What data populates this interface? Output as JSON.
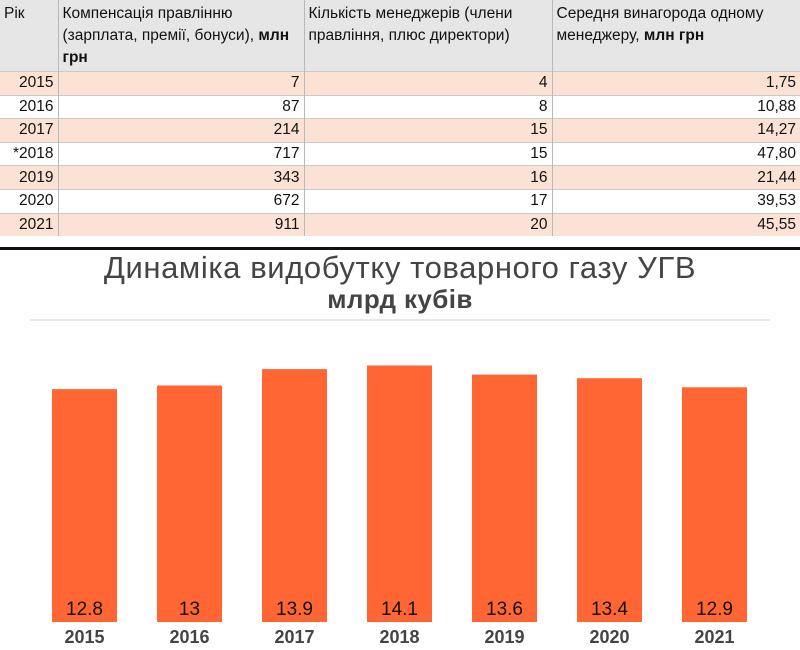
{
  "table": {
    "headers": [
      {
        "text": "Рік",
        "bold": ""
      },
      {
        "text": "Компенсація правлінню (зарплата, премії, бонуси),",
        "bold": "млн грн"
      },
      {
        "text": "Кількість менеджерів (члени правління, плюс директори)",
        "bold": ""
      },
      {
        "text": "Середня винагорода одному менеджеру,",
        "bold": "млн грн"
      }
    ],
    "rows": [
      [
        "2015",
        "7",
        "4",
        "1,75"
      ],
      [
        "2016",
        "87",
        "8",
        "10,88"
      ],
      [
        "2017",
        "214",
        "15",
        "14,27"
      ],
      [
        "*2018",
        "717",
        "15",
        "47,80"
      ],
      [
        "2019",
        "343",
        "16",
        "21,44"
      ],
      [
        "2020",
        "672",
        "17",
        "39,53"
      ],
      [
        "2021",
        "911",
        "20",
        "45,55"
      ]
    ],
    "colors": {
      "header_bg": "#e7e6e6",
      "row_shade": "#fbe2d5"
    }
  },
  "chart_data": {
    "type": "bar",
    "title": "Динаміка видобутку товарного газу УГВ",
    "subtitle": "млрд кубів",
    "categories": [
      "2015",
      "2016",
      "2017",
      "2018",
      "2019",
      "2020",
      "2021"
    ],
    "values": [
      12.8,
      13,
      13.9,
      14.1,
      13.6,
      13.4,
      12.9
    ],
    "value_labels": [
      "12.8",
      "13",
      "13.9",
      "14.1",
      "13.6",
      "13.4",
      "12.9"
    ],
    "ylim": [
      0,
      15.5
    ],
    "grid": false,
    "bar_color": "#ff6633"
  }
}
